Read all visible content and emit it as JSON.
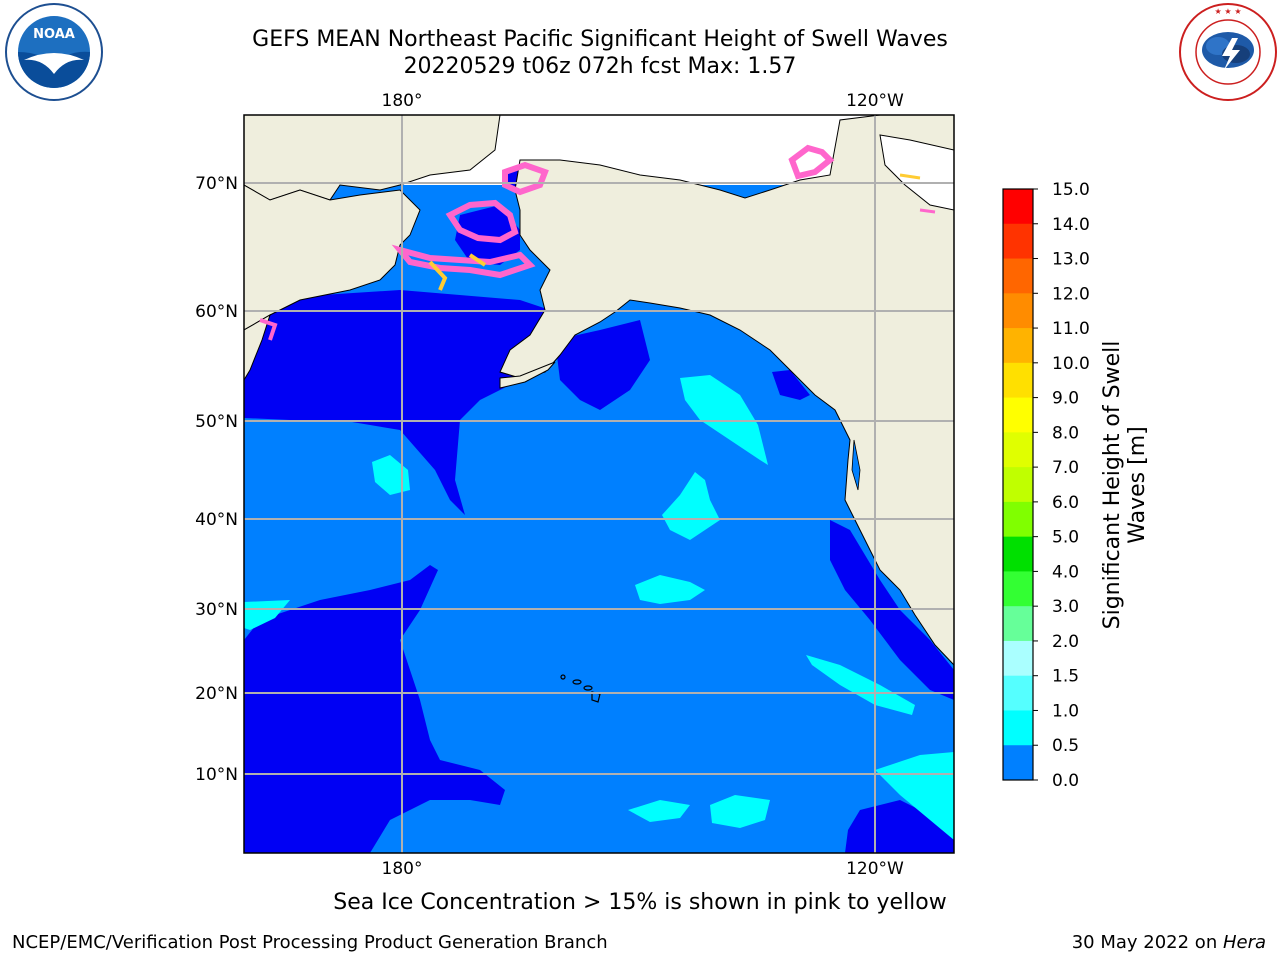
{
  "header": {
    "title_line1": "GEFS MEAN Northeast Pacific Significant Height of Swell Waves",
    "title_line2": "20220529 t06z 072h fcst   Max: 1.57"
  },
  "logos": {
    "left": "NOAA",
    "left_ring_text": "NATIONAL OCEANIC AND ATMOSPHERIC ADMINISTRATION",
    "left_ring_text_bottom": "U.S. DEPARTMENT OF COMMERCE",
    "right_ring_text": "NATIONAL WEATHER SERVICE"
  },
  "map": {
    "lon_labels_top": [
      "180°",
      "120°W"
    ],
    "lon_labels_bottom": [
      "180°",
      "120°W"
    ],
    "lat_labels": [
      "70°N",
      "60°N",
      "50°N",
      "40°N",
      "30°N",
      "20°N",
      "10°N"
    ],
    "colors": {
      "land": "#efeedd",
      "ocean_low": "#0000f4",
      "ocean_mid": "#0080ff",
      "ocean_cyan": "#00ffff",
      "ice_pink": "#ff66cc",
      "ice_yellow": "#ffcc33",
      "gridline": "#b0b0b0"
    }
  },
  "colorbar": {
    "title_line1": "Significant Height of Swell",
    "title_line2": "Waves [m]",
    "ticks": [
      "15.0",
      "14.0",
      "13.0",
      "12.0",
      "11.0",
      "10.0",
      "9.0",
      "8.0",
      "7.0",
      "6.0",
      "5.0",
      "4.0",
      "3.0",
      "2.0",
      "1.5",
      "1.0",
      "0.5",
      "0.0"
    ],
    "band_colors": [
      "#ff0000",
      "#ff3300",
      "#ff6600",
      "#ff8c00",
      "#ffb300",
      "#ffe000",
      "#ffff00",
      "#e0ff00",
      "#c0ff00",
      "#80ff00",
      "#00e000",
      "#33ff33",
      "#66ff99",
      "#aaffff",
      "#55ffff",
      "#00ffff",
      "#0080ff",
      "#0000f4"
    ]
  },
  "notes": {
    "ice": "Sea Ice Concentration > 15% is shown in pink to yellow",
    "footer_left": "NCEP/EMC/Verification Post Processing Product Generation Branch",
    "footer_right_date": "30 May 2022 on ",
    "footer_right_host": "Hera"
  }
}
